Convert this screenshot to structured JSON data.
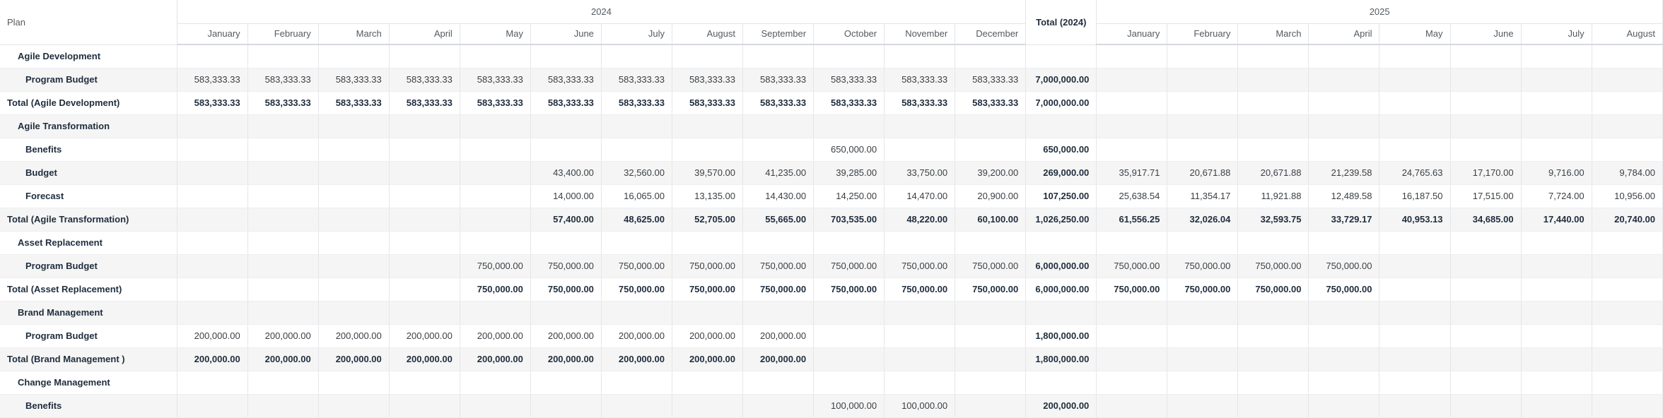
{
  "header": {
    "plan_label": "Plan",
    "year1": "2024",
    "year2": "2025",
    "total_label": "Total (2024)",
    "months_2024": [
      "January",
      "February",
      "March",
      "April",
      "May",
      "June",
      "July",
      "August",
      "September",
      "October",
      "November",
      "December"
    ],
    "months_2025": [
      "January",
      "February",
      "March",
      "April",
      "May",
      "June",
      "July",
      "August"
    ]
  },
  "rows": [
    {
      "type": "group",
      "label": "Agile Development",
      "cells": [
        "",
        "",
        "",
        "",
        "",
        "",
        "",
        "",
        "",
        "",
        "",
        "",
        "",
        "",
        "",
        "",
        "",
        "",
        "",
        "",
        ""
      ]
    },
    {
      "type": "item",
      "label": "Program Budget",
      "cells": [
        "583,333.33",
        "583,333.33",
        "583,333.33",
        "583,333.33",
        "583,333.33",
        "583,333.33",
        "583,333.33",
        "583,333.33",
        "583,333.33",
        "583,333.33",
        "583,333.33",
        "583,333.33",
        "7,000,000.00",
        "",
        "",
        "",
        "",
        "",
        "",
        "",
        ""
      ]
    },
    {
      "type": "total",
      "label": "Total (Agile Development)",
      "cells": [
        "583,333.33",
        "583,333.33",
        "583,333.33",
        "583,333.33",
        "583,333.33",
        "583,333.33",
        "583,333.33",
        "583,333.33",
        "583,333.33",
        "583,333.33",
        "583,333.33",
        "583,333.33",
        "7,000,000.00",
        "",
        "",
        "",
        "",
        "",
        "",
        "",
        ""
      ]
    },
    {
      "type": "group",
      "label": "Agile Transformation",
      "cells": [
        "",
        "",
        "",
        "",
        "",
        "",
        "",
        "",
        "",
        "",
        "",
        "",
        "",
        "",
        "",
        "",
        "",
        "",
        "",
        "",
        ""
      ]
    },
    {
      "type": "item",
      "label": "Benefits",
      "cells": [
        "",
        "",
        "",
        "",
        "",
        "",
        "",
        "",
        "",
        "650,000.00",
        "",
        "",
        "650,000.00",
        "",
        "",
        "",
        "",
        "",
        "",
        "",
        ""
      ]
    },
    {
      "type": "item",
      "label": "Budget",
      "cells": [
        "",
        "",
        "",
        "",
        "",
        "43,400.00",
        "32,560.00",
        "39,570.00",
        "41,235.00",
        "39,285.00",
        "33,750.00",
        "39,200.00",
        "269,000.00",
        "35,917.71",
        "20,671.88",
        "20,671.88",
        "21,239.58",
        "24,765.63",
        "17,170.00",
        "9,716.00",
        "9,784.00"
      ]
    },
    {
      "type": "item",
      "label": "Forecast",
      "cells": [
        "",
        "",
        "",
        "",
        "",
        "14,000.00",
        "16,065.00",
        "13,135.00",
        "14,430.00",
        "14,250.00",
        "14,470.00",
        "20,900.00",
        "107,250.00",
        "25,638.54",
        "11,354.17",
        "11,921.88",
        "12,489.58",
        "16,187.50",
        "17,515.00",
        "7,724.00",
        "10,956.00"
      ]
    },
    {
      "type": "total",
      "label": "Total (Agile Transformation)",
      "cells": [
        "",
        "",
        "",
        "",
        "",
        "57,400.00",
        "48,625.00",
        "52,705.00",
        "55,665.00",
        "703,535.00",
        "48,220.00",
        "60,100.00",
        "1,026,250.00",
        "61,556.25",
        "32,026.04",
        "32,593.75",
        "33,729.17",
        "40,953.13",
        "34,685.00",
        "17,440.00",
        "20,740.00"
      ]
    },
    {
      "type": "group",
      "label": "Asset Replacement",
      "cells": [
        "",
        "",
        "",
        "",
        "",
        "",
        "",
        "",
        "",
        "",
        "",
        "",
        "",
        "",
        "",
        "",
        "",
        "",
        "",
        "",
        ""
      ]
    },
    {
      "type": "item",
      "label": "Program Budget",
      "cells": [
        "",
        "",
        "",
        "",
        "750,000.00",
        "750,000.00",
        "750,000.00",
        "750,000.00",
        "750,000.00",
        "750,000.00",
        "750,000.00",
        "750,000.00",
        "6,000,000.00",
        "750,000.00",
        "750,000.00",
        "750,000.00",
        "750,000.00",
        "",
        "",
        "",
        ""
      ]
    },
    {
      "type": "total",
      "label": "Total (Asset Replacement)",
      "cells": [
        "",
        "",
        "",
        "",
        "750,000.00",
        "750,000.00",
        "750,000.00",
        "750,000.00",
        "750,000.00",
        "750,000.00",
        "750,000.00",
        "750,000.00",
        "6,000,000.00",
        "750,000.00",
        "750,000.00",
        "750,000.00",
        "750,000.00",
        "",
        "",
        "",
        ""
      ]
    },
    {
      "type": "group",
      "label": "Brand Management",
      "cells": [
        "",
        "",
        "",
        "",
        "",
        "",
        "",
        "",
        "",
        "",
        "",
        "",
        "",
        "",
        "",
        "",
        "",
        "",
        "",
        "",
        ""
      ]
    },
    {
      "type": "item",
      "label": "Program Budget",
      "cells": [
        "200,000.00",
        "200,000.00",
        "200,000.00",
        "200,000.00",
        "200,000.00",
        "200,000.00",
        "200,000.00",
        "200,000.00",
        "200,000.00",
        "",
        "",
        "",
        "1,800,000.00",
        "",
        "",
        "",
        "",
        "",
        "",
        "",
        ""
      ]
    },
    {
      "type": "total",
      "label": "Total (Brand Management )",
      "cells": [
        "200,000.00",
        "200,000.00",
        "200,000.00",
        "200,000.00",
        "200,000.00",
        "200,000.00",
        "200,000.00",
        "200,000.00",
        "200,000.00",
        "",
        "",
        "",
        "1,800,000.00",
        "",
        "",
        "",
        "",
        "",
        "",
        "",
        ""
      ]
    },
    {
      "type": "group",
      "label": "Change Management",
      "cells": [
        "",
        "",
        "",
        "",
        "",
        "",
        "",
        "",
        "",
        "",
        "",
        "",
        "",
        "",
        "",
        "",
        "",
        "",
        "",
        "",
        ""
      ]
    },
    {
      "type": "item",
      "label": "Benefits",
      "cells": [
        "",
        "",
        "",
        "",
        "",
        "",
        "",
        "",
        "",
        "100,000.00",
        "100,000.00",
        "",
        "200,000.00",
        "",
        "",
        "",
        "",
        "",
        "",
        "",
        ""
      ]
    }
  ]
}
